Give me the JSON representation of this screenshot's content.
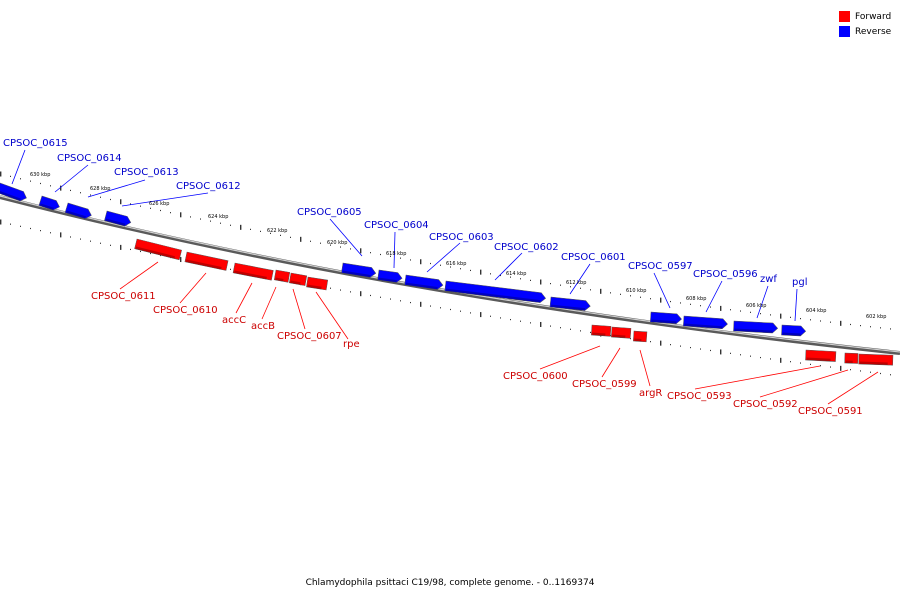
{
  "legend": {
    "forward": {
      "label": "Forward",
      "color": "#ff0000"
    },
    "reverse": {
      "label": "Reverse",
      "color": "#0000ff"
    }
  },
  "colors": {
    "forward": "#ff0000",
    "reverse": "#0000ff",
    "label_forward": "#cc0000",
    "label_reverse": "#0000cc",
    "backbone": "#8c8c8c"
  },
  "caption": "Chlamydophila psittaci C19/98, complete genome. - 0..1169374",
  "scale_labels": [
    "630 kbp",
    "628 kbp",
    "626 kbp",
    "624 kbp",
    "622 kbp",
    "620 kbp",
    "618 kbp",
    "616 kbp",
    "614 kbp",
    "612 kbp",
    "610 kbp",
    "608 kbp",
    "606 kbp",
    "604 kbp",
    "602 kbp"
  ],
  "genes_reverse": [
    "CPSOC_0615",
    "CPSOC_0614",
    "CPSOC_0613",
    "CPSOC_0612",
    "CPSOC_0605",
    "CPSOC_0604",
    "CPSOC_0603",
    "CPSOC_0602",
    "CPSOC_0601",
    "CPSOC_0597",
    "CPSOC_0596",
    "zwf",
    "pgl"
  ],
  "genes_forward": [
    "CPSOC_0611",
    "CPSOC_0610",
    "accC",
    "accB",
    "CPSOC_0607",
    "rpe",
    "CPSOC_0600",
    "CPSOC_0599",
    "argR",
    "CPSOC_0593",
    "CPSOC_0592",
    "CPSOC_0591"
  ]
}
